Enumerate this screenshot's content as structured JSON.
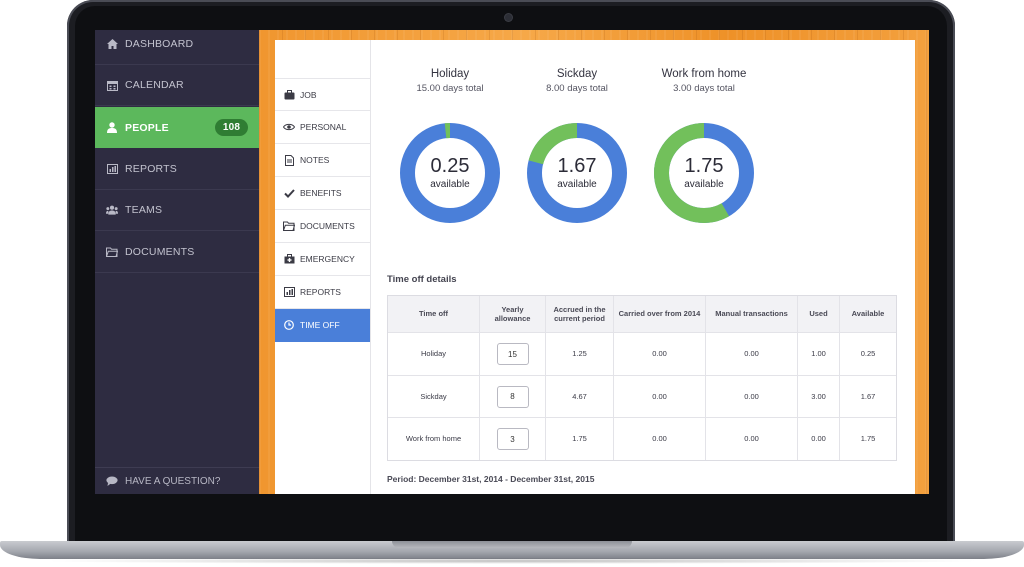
{
  "sidebar": {
    "items": [
      {
        "label": "DASHBOARD",
        "icon": "home-icon"
      },
      {
        "label": "CALENDAR",
        "icon": "calendar-icon"
      },
      {
        "label": "PEOPLE",
        "icon": "user-icon",
        "badge": "108",
        "active": true
      },
      {
        "label": "REPORTS",
        "icon": "bar-chart-icon"
      },
      {
        "label": "TEAMS",
        "icon": "users-icon"
      },
      {
        "label": "DOCUMENTS",
        "icon": "folder-icon"
      }
    ],
    "help_label": "HAVE A QUESTION?"
  },
  "subnav": {
    "items": [
      {
        "label": "JOB",
        "icon": "briefcase-icon"
      },
      {
        "label": "PERSONAL",
        "icon": "eye-icon"
      },
      {
        "label": "NOTES",
        "icon": "note-icon"
      },
      {
        "label": "BENEFITS",
        "icon": "check-icon"
      },
      {
        "label": "DOCUMENTS",
        "icon": "folder-icon"
      },
      {
        "label": "EMERGENCY",
        "icon": "medkit-icon"
      },
      {
        "label": "REPORTS",
        "icon": "bar-chart-icon"
      },
      {
        "label": "TIME OFF",
        "icon": "clock-icon",
        "active": true
      }
    ]
  },
  "summary": [
    {
      "title": "Holiday",
      "total": "15.00 days total",
      "value": "0.25",
      "label": "available",
      "available_fraction": 0.017
    },
    {
      "title": "Sickday",
      "total": "8.00 days total",
      "value": "1.67",
      "label": "available",
      "available_fraction": 0.209
    },
    {
      "title": "Work from home",
      "total": "3.00 days total",
      "value": "1.75",
      "label": "available",
      "available_fraction": 0.583
    }
  ],
  "colors": {
    "available": "#72c05b",
    "used": "#4a7fd9",
    "accent_green": "#5cb85c"
  },
  "details": {
    "title": "Time off details",
    "headers": [
      "Time off",
      "Yearly allowance",
      "Accrued in the current period",
      "Carried over from 2014",
      "Manual transactions",
      "Used",
      "Available"
    ],
    "rows": [
      {
        "name": "Holiday",
        "allowance": "15",
        "accrued": "1.25",
        "carried": "0.00",
        "manual": "0.00",
        "used": "1.00",
        "available": "0.25"
      },
      {
        "name": "Sickday",
        "allowance": "8",
        "accrued": "4.67",
        "carried": "0.00",
        "manual": "0.00",
        "used": "3.00",
        "available": "1.67"
      },
      {
        "name": "Work from home",
        "allowance": "3",
        "accrued": "1.75",
        "carried": "0.00",
        "manual": "0.00",
        "used": "0.00",
        "available": "1.75"
      }
    ],
    "period": "Period: December 31st, 2014 - December 31st, 2015"
  }
}
